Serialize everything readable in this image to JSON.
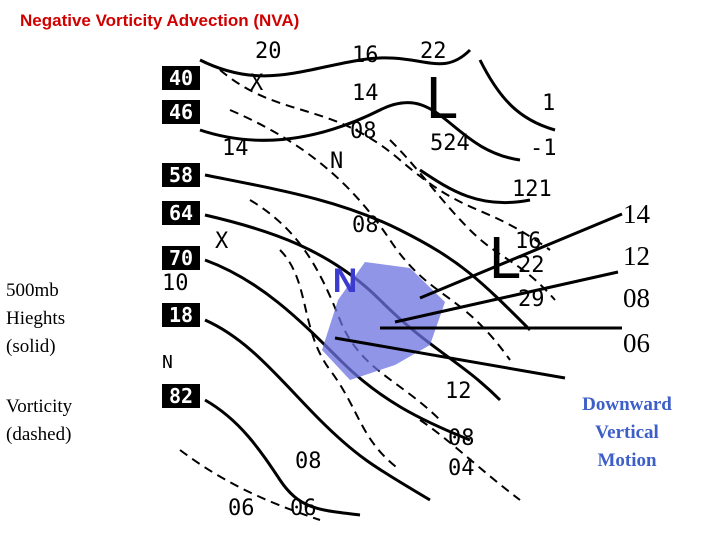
{
  "header": {
    "title": "Negative Vorticity Advection (NVA)"
  },
  "legend": {
    "heights": "500mb Hieghts (solid)",
    "vorticity": "Vorticity (dashed)"
  },
  "side_labels": [
    "14",
    "12",
    "08",
    "06"
  ],
  "annotation": "Downward Vertical Motion",
  "map": {
    "nva_label": "N",
    "lows": [
      "L",
      "L"
    ],
    "boxes": [
      "40",
      "46",
      "58",
      "64",
      "70",
      "18",
      "82"
    ],
    "labels": [
      "20",
      "16",
      "22",
      "X",
      "14",
      "1",
      "08",
      "524",
      "14",
      "-1",
      "N",
      "121",
      "08",
      "X",
      "16",
      "22",
      "29",
      "12",
      "08",
      "04",
      "08",
      "06",
      "06",
      "10",
      "N"
    ]
  }
}
